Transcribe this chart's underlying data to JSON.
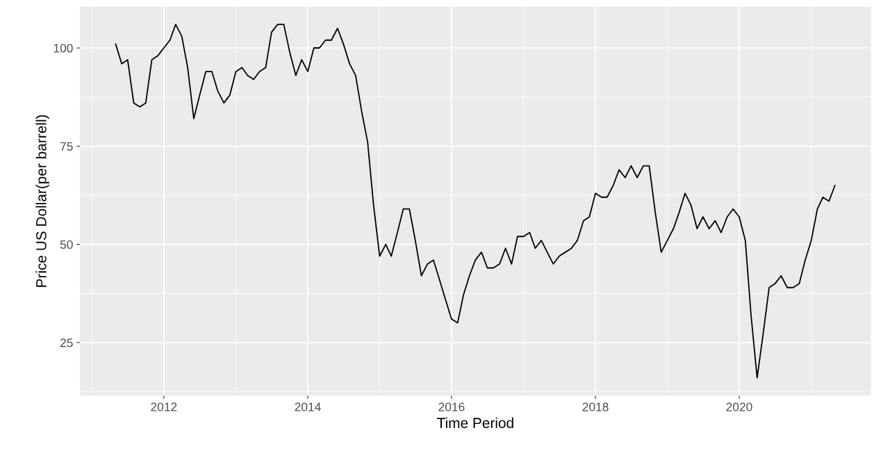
{
  "chart_data": {
    "type": "line",
    "xlabel": "Time Period",
    "ylabel": "Price US Dollar(per barrell)",
    "x": [
      "2011-05",
      "2011-06",
      "2011-07",
      "2011-08",
      "2011-09",
      "2011-10",
      "2011-11",
      "2011-12",
      "2012-01",
      "2012-02",
      "2012-03",
      "2012-04",
      "2012-05",
      "2012-06",
      "2012-07",
      "2012-08",
      "2012-09",
      "2012-10",
      "2012-11",
      "2012-12",
      "2013-01",
      "2013-02",
      "2013-03",
      "2013-04",
      "2013-05",
      "2013-06",
      "2013-07",
      "2013-08",
      "2013-09",
      "2013-10",
      "2013-11",
      "2013-12",
      "2014-01",
      "2014-02",
      "2014-03",
      "2014-04",
      "2014-05",
      "2014-06",
      "2014-07",
      "2014-08",
      "2014-09",
      "2014-10",
      "2014-11",
      "2014-12",
      "2015-01",
      "2015-02",
      "2015-03",
      "2015-04",
      "2015-05",
      "2015-06",
      "2015-07",
      "2015-08",
      "2015-09",
      "2015-10",
      "2015-11",
      "2015-12",
      "2016-01",
      "2016-02",
      "2016-03",
      "2016-04",
      "2016-05",
      "2016-06",
      "2016-07",
      "2016-08",
      "2016-09",
      "2016-10",
      "2016-11",
      "2016-12",
      "2017-01",
      "2017-02",
      "2017-03",
      "2017-04",
      "2017-05",
      "2017-06",
      "2017-07",
      "2017-08",
      "2017-09",
      "2017-10",
      "2017-11",
      "2017-12",
      "2018-01",
      "2018-02",
      "2018-03",
      "2018-04",
      "2018-05",
      "2018-06",
      "2018-07",
      "2018-08",
      "2018-09",
      "2018-10",
      "2018-11",
      "2018-12",
      "2019-01",
      "2019-02",
      "2019-03",
      "2019-04",
      "2019-05",
      "2019-06",
      "2019-07",
      "2019-08",
      "2019-09",
      "2019-10",
      "2019-11",
      "2019-12",
      "2020-01",
      "2020-02",
      "2020-03",
      "2020-04",
      "2020-05",
      "2020-06",
      "2020-07",
      "2020-08",
      "2020-09",
      "2020-10",
      "2020-11",
      "2020-12",
      "2021-01",
      "2021-02",
      "2021-03",
      "2021-04",
      "2021-05"
    ],
    "series": [
      {
        "color": "#000000",
        "values": [
          101,
          96,
          97,
          86,
          85,
          86,
          97,
          98,
          100,
          102,
          106,
          103,
          95,
          82,
          88,
          94,
          94,
          89,
          86,
          88,
          94,
          95,
          93,
          92,
          94,
          95,
          104,
          106,
          106,
          99,
          93,
          97,
          94,
          100,
          100,
          102,
          102,
          105,
          101,
          96,
          93,
          84,
          76,
          60,
          47,
          50,
          47,
          53,
          59,
          59,
          51,
          42,
          45,
          46,
          41,
          36,
          31,
          30,
          37,
          42,
          46,
          48,
          44,
          44,
          45,
          49,
          45,
          52,
          52,
          53,
          49,
          51,
          48,
          45,
          47,
          48,
          49,
          51,
          56,
          57,
          63,
          62,
          62,
          65,
          69,
          67,
          70,
          67,
          70,
          70,
          58,
          48,
          51,
          54,
          58,
          63,
          60,
          54,
          57,
          54,
          56,
          53,
          57,
          59,
          57,
          51,
          32,
          16,
          27,
          39,
          40,
          42,
          39,
          39,
          40,
          46,
          51,
          59,
          62,
          61,
          65
        ]
      }
    ],
    "xlim": [
      "2010-11-01",
      "2021-10-31"
    ],
    "xticks": [
      {
        "value": "2012-01-01",
        "label": "2012"
      },
      {
        "value": "2014-01-01",
        "label": "2014"
      },
      {
        "value": "2016-01-01",
        "label": "2016"
      },
      {
        "value": "2018-01-01",
        "label": "2018"
      },
      {
        "value": "2020-01-01",
        "label": "2020"
      }
    ],
    "ylim": [
      11.5,
      110.5
    ],
    "yticks": [
      25,
      50,
      75,
      100
    ],
    "grid": true
  }
}
